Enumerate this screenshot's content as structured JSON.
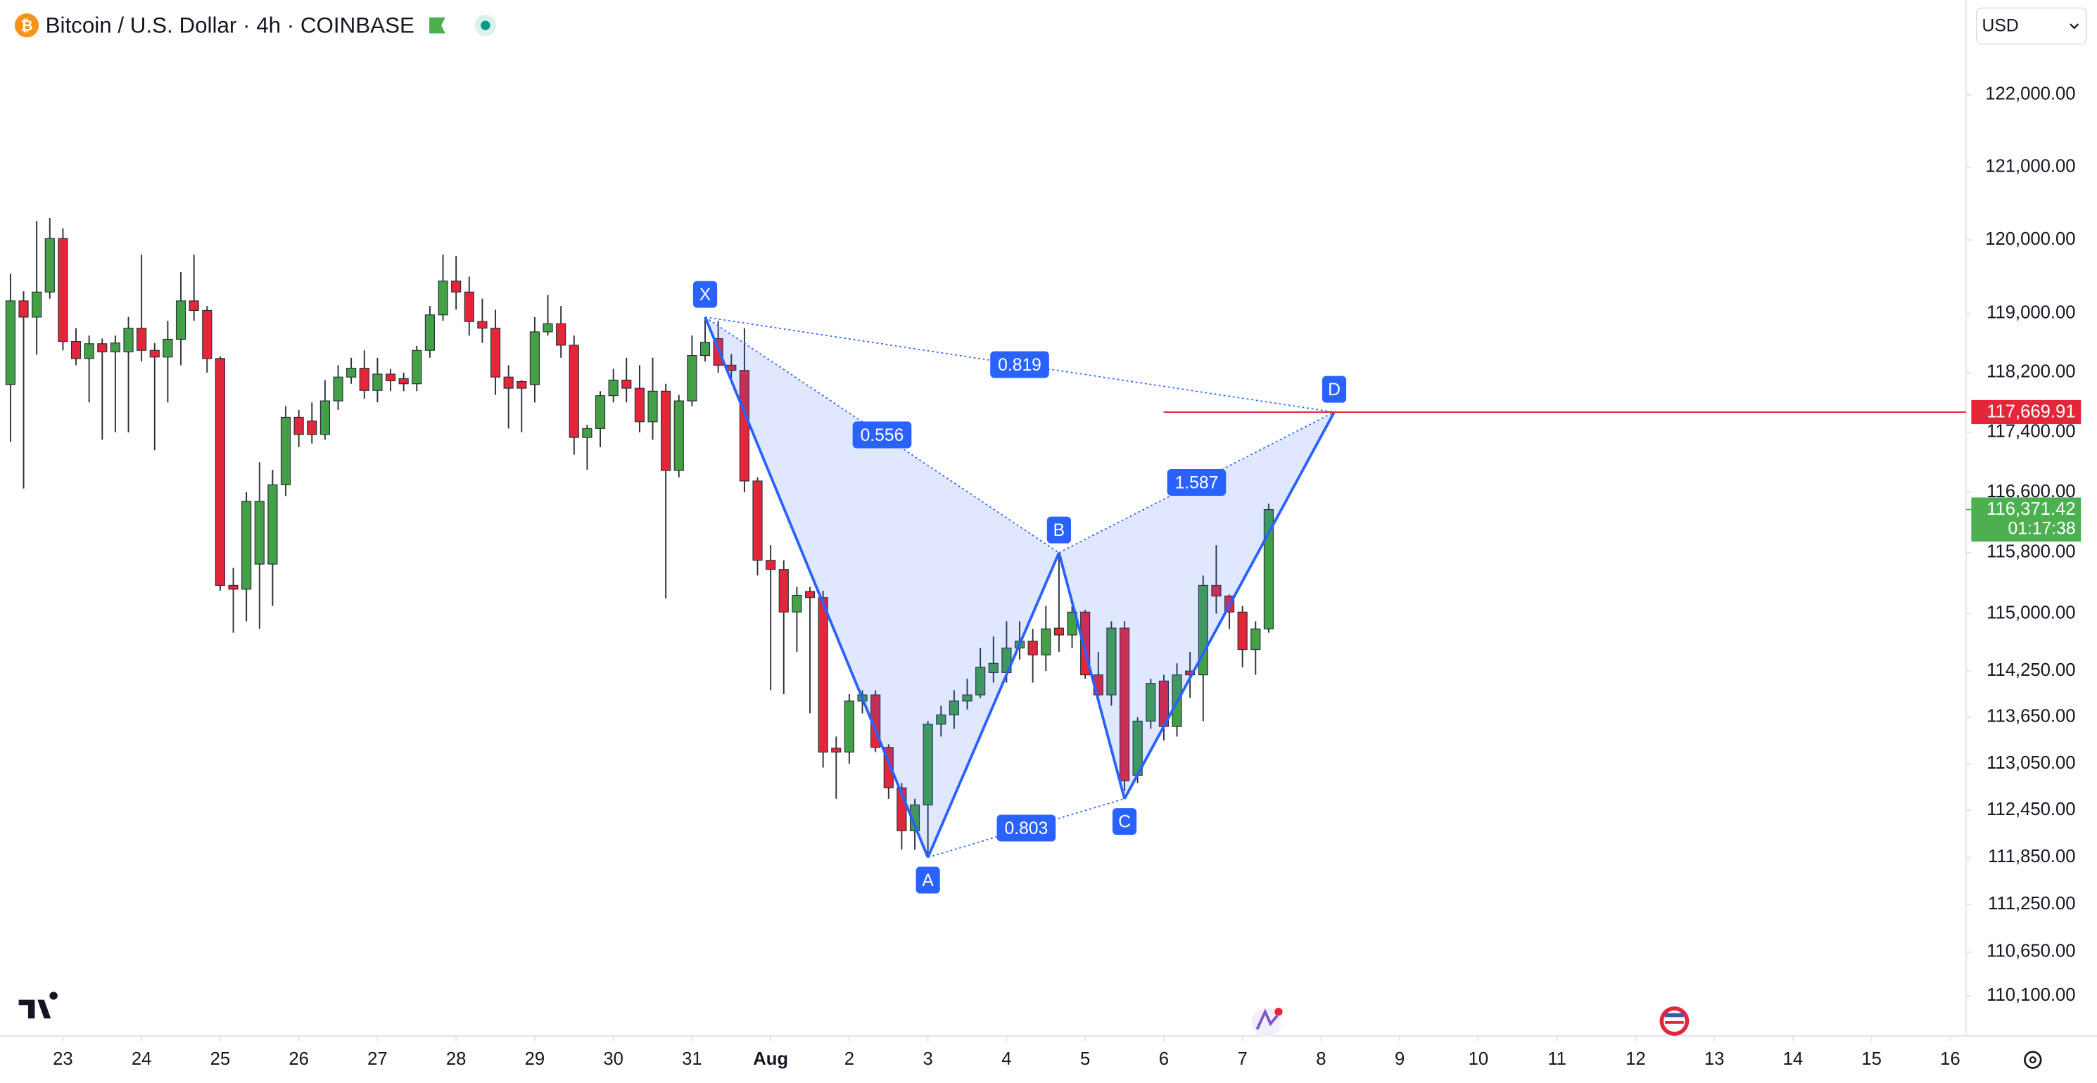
{
  "chart_data": {
    "type": "candlestick",
    "title": "Bitcoin / U.S. Dollar · 4h · COINBASE",
    "currency": "USD",
    "log_scale": true,
    "up_color": "#43a047",
    "down_color": "#e3263a",
    "pattern_color": "#2962ff",
    "ylim": [
      109600,
      123325
    ],
    "xlim": [
      -0.8,
      149.2
    ],
    "yticks": [
      {
        "value": 122000,
        "label": "122,000.00"
      },
      {
        "value": 121000,
        "label": "121,000.00"
      },
      {
        "value": 120000,
        "label": "120,000.00"
      },
      {
        "value": 119000,
        "label": "119,000.00"
      },
      {
        "value": 118200,
        "label": "118,200.00"
      },
      {
        "value": 117400,
        "label": "117,400.00"
      },
      {
        "value": 116600,
        "label": "116,600.00"
      },
      {
        "value": 115800,
        "label": "115,800.00"
      },
      {
        "value": 115000,
        "label": "115,000.00"
      },
      {
        "value": 114250,
        "label": "114,250.00"
      },
      {
        "value": 113650,
        "label": "113,650.00"
      },
      {
        "value": 113050,
        "label": "113,050.00"
      },
      {
        "value": 112450,
        "label": "112,450.00"
      },
      {
        "value": 111850,
        "label": "111,850.00"
      },
      {
        "value": 111250,
        "label": "111,250.00"
      },
      {
        "value": 110650,
        "label": "110,650.00"
      },
      {
        "value": 110100,
        "label": "110,100.00"
      }
    ],
    "xticks": [
      {
        "value": 4,
        "label": "23"
      },
      {
        "value": 10,
        "label": "24"
      },
      {
        "value": 16,
        "label": "25"
      },
      {
        "value": 22,
        "label": "26"
      },
      {
        "value": 28,
        "label": "27"
      },
      {
        "value": 34,
        "label": "28"
      },
      {
        "value": 40,
        "label": "29"
      },
      {
        "value": 46,
        "label": "30"
      },
      {
        "value": 52,
        "label": "31"
      },
      {
        "value": 58,
        "label": "Aug"
      },
      {
        "value": 64,
        "label": "2"
      },
      {
        "value": 70,
        "label": "3"
      },
      {
        "value": 76,
        "label": "4"
      },
      {
        "value": 82,
        "label": "5"
      },
      {
        "value": 88,
        "label": "6"
      },
      {
        "value": 94,
        "label": "7"
      },
      {
        "value": 100,
        "label": "8"
      },
      {
        "value": 106,
        "label": "9"
      },
      {
        "value": 112,
        "label": "10"
      },
      {
        "value": 118,
        "label": "11"
      },
      {
        "value": 124,
        "label": "12"
      },
      {
        "value": 130,
        "label": "13"
      },
      {
        "value": 136,
        "label": "14"
      },
      {
        "value": 142,
        "label": "15"
      },
      {
        "value": 148,
        "label": "16"
      }
    ],
    "open": [
      118040,
      119170,
      118950,
      119290,
      120020,
      118620,
      118390,
      118590,
      118480,
      118480,
      118800,
      118500,
      118410,
      118650,
      119170,
      119040,
      118390,
      115370,
      115320,
      115650,
      115650,
      116700,
      117600,
      117550,
      117370,
      117820,
      118140,
      118260,
      117960,
      118180,
      118120,
      118050,
      118500,
      118980,
      119440,
      119290,
      118890,
      118800,
      118140,
      118080,
      118040,
      118750,
      118860,
      118570,
      117330,
      117450,
      117890,
      118100,
      117990,
      117540,
      117950,
      116890,
      117820,
      118430,
      118660,
      118300,
      118230,
      116750,
      115700,
      115580,
      115020,
      115290,
      115210,
      113250,
      113200,
      113860,
      113940,
      113260,
      112740,
      112190,
      112520,
      113560,
      113680,
      113860,
      113940,
      114230,
      114230,
      114550,
      114640,
      114460,
      114810,
      114720,
      115020,
      114200,
      113940,
      114810,
      112900,
      113600,
      114120,
      113530,
      114250,
      114200,
      115370,
      115230,
      115020,
      114530,
      114800
    ],
    "high": [
      119540,
      119300,
      120260,
      120300,
      120160,
      118800,
      118700,
      118660,
      118700,
      118950,
      119800,
      118600,
      118900,
      119560,
      119800,
      119100,
      118420,
      115600,
      116600,
      117000,
      116900,
      117750,
      117700,
      117800,
      118100,
      118300,
      118400,
      118500,
      118400,
      118250,
      118200,
      118560,
      119100,
      119800,
      119780,
      119500,
      119200,
      119050,
      118300,
      118100,
      118950,
      119250,
      119100,
      118700,
      117500,
      117950,
      118250,
      118400,
      118300,
      118400,
      118050,
      117900,
      118700,
      118950,
      118900,
      118450,
      118800,
      116800,
      115900,
      115700,
      115350,
      115350,
      115300,
      113400,
      113950,
      114000,
      114000,
      113300,
      112800,
      112600,
      113600,
      113800,
      114000,
      114150,
      114550,
      114700,
      114900,
      114900,
      114800,
      115100,
      115800,
      115100,
      115050,
      114500,
      114900,
      114900,
      113650,
      114150,
      114200,
      114350,
      114500,
      115500,
      115900,
      115250,
      115100,
      114900,
      116450
    ],
    "low": [
      117270,
      116650,
      118440,
      119200,
      118500,
      118300,
      117800,
      117300,
      117400,
      117400,
      118350,
      117160,
      117800,
      118300,
      118900,
      118200,
      115300,
      114750,
      114900,
      114800,
      115100,
      116550,
      117200,
      117250,
      117300,
      117700,
      118050,
      117850,
      117800,
      117950,
      117950,
      117950,
      118400,
      118900,
      119050,
      118700,
      118600,
      117900,
      117450,
      117400,
      117800,
      118700,
      118400,
      117100,
      116900,
      117200,
      117800,
      117800,
      117400,
      117300,
      115200,
      116800,
      117750,
      118350,
      118200,
      118100,
      116600,
      115500,
      114000,
      113950,
      114500,
      113700,
      113000,
      112600,
      113050,
      113700,
      113200,
      112600,
      111950,
      111950,
      111850,
      113400,
      113500,
      113750,
      113900,
      114100,
      114100,
      114400,
      114100,
      114250,
      114500,
      114550,
      114150,
      113900,
      113800,
      112700,
      112800,
      113500,
      113350,
      113400,
      113900,
      113600,
      115000,
      114800,
      114300,
      114200,
      114750
    ],
    "close": [
      119170,
      118950,
      119290,
      120020,
      118620,
      118390,
      118590,
      118480,
      118600,
      118800,
      118500,
      118410,
      118650,
      119170,
      119040,
      118390,
      115370,
      115320,
      116480,
      116480,
      116700,
      117600,
      117370,
      117370,
      117820,
      118140,
      118260,
      117960,
      118180,
      118090,
      118050,
      118500,
      118980,
      119440,
      119290,
      118890,
      118800,
      118140,
      117990,
      117990,
      118750,
      118860,
      118570,
      117330,
      117450,
      117890,
      118100,
      117990,
      117540,
      117950,
      116890,
      117820,
      118430,
      118610,
      118300,
      118230,
      116750,
      115700,
      115580,
      115020,
      115240,
      115210,
      113200,
      113200,
      113860,
      113940,
      113260,
      112740,
      112190,
      112520,
      113560,
      113680,
      113860,
      113940,
      114300,
      114350,
      114550,
      114640,
      114460,
      114800,
      114720,
      115020,
      114200,
      113940,
      114810,
      112830,
      113600,
      114090,
      113530,
      114200,
      114200,
      115370,
      115230,
      115020,
      114530,
      114800,
      116371.42
    ],
    "pattern": {
      "points": [
        {
          "label": "X",
          "x": 53,
          "y": 118950
        },
        {
          "label": "A",
          "x": 70,
          "y": 111850
        },
        {
          "label": "B",
          "x": 80,
          "y": 115800
        },
        {
          "label": "C",
          "x": 85,
          "y": 112600
        },
        {
          "label": "D",
          "x": 101,
          "y": 117669.91
        }
      ],
      "ratios": [
        0.819,
        0.556,
        1.587,
        0.803
      ]
    },
    "price_line": {
      "value": 117669.91,
      "label": "117,669.91",
      "color": "#e3263a"
    },
    "last_price": {
      "value": 116371.42,
      "label": "116,371.42",
      "color": "#4caf50"
    },
    "countdown": "01:17:38"
  }
}
